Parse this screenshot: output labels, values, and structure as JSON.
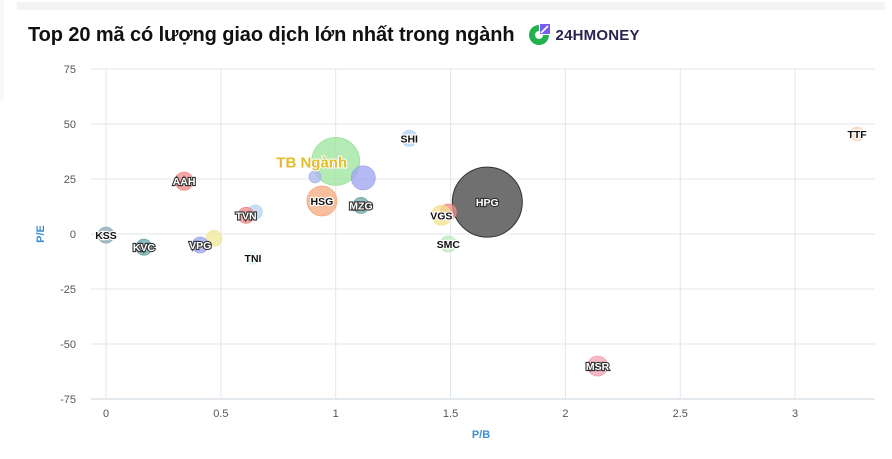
{
  "header": {
    "title": "Top 20 mã có lượng giao dịch lớn nhất trong ngành",
    "logo_text": "24HMONEY",
    "logo_icon": "24hmoney-logo-icon"
  },
  "colors": {
    "title": "#111111",
    "axis_label": "#3b8fd4",
    "grid": "#e3e6ea",
    "tb_label": "#e2bd2b",
    "logo_green": "#22b14c",
    "logo_purple": "#7a5cf0"
  },
  "chart_data": {
    "type": "scatter",
    "title": "Top 20 mã có lượng giao dịch lớn nhất trong ngành",
    "xlabel": "P/B",
    "ylabel": "P/E",
    "xlim": [
      -0.06,
      3.35
    ],
    "ylim": [
      -75,
      75
    ],
    "x_ticks": [
      0,
      0.5,
      1,
      1.5,
      2,
      2.5,
      3
    ],
    "x_tick_labels": [
      "0",
      "0.5",
      "1",
      "1.5",
      "2",
      "2.5",
      "3"
    ],
    "y_ticks": [
      75,
      50,
      25,
      0,
      -25,
      -50,
      -75
    ],
    "y_tick_labels": [
      "75",
      "50",
      "25",
      "0",
      "-25",
      "-50",
      "-75"
    ],
    "grid": true,
    "legend": "none",
    "points": [
      {
        "label": "TB Ngành",
        "x": 1.0,
        "y": 33,
        "r": 24,
        "color": "#9be39b",
        "special": true
      },
      {
        "label": "",
        "x": 0.91,
        "y": 26,
        "r": 6,
        "color": "#aab4f0"
      },
      {
        "label": "HPG",
        "x": 1.66,
        "y": 14.5,
        "r": 35,
        "color": "#707070",
        "outline": true
      },
      {
        "label": "HSG",
        "x": 0.94,
        "y": 15,
        "r": 15,
        "color": "#f4a97c"
      },
      {
        "label": "",
        "x": 1.12,
        "y": 25.5,
        "r": 12,
        "color": "#9ea3f0"
      },
      {
        "label": "MZG",
        "x": 1.11,
        "y": 13,
        "r": 8,
        "color": "#6aa5a5",
        "outline": true
      },
      {
        "label": "SHI",
        "x": 1.32,
        "y": 43.5,
        "r": 8,
        "color": "#b5d3f0"
      },
      {
        "label": "",
        "x": 1.49,
        "y": 10,
        "r": 8,
        "color": "#f08a8a"
      },
      {
        "label": "VGS",
        "x": 1.46,
        "y": 8.5,
        "r": 10,
        "color": "#f5e08a"
      },
      {
        "label": "SMC",
        "x": 1.49,
        "y": -4.5,
        "r": 8,
        "color": "#b8ecb8"
      },
      {
        "label": "AAH",
        "x": 0.34,
        "y": 24,
        "r": 9,
        "color": "#f28a8a",
        "outline": true
      },
      {
        "label": "",
        "x": 0.65,
        "y": 10,
        "r": 7,
        "color": "#b5d3f0"
      },
      {
        "label": "TVN",
        "x": 0.61,
        "y": 8.5,
        "r": 8,
        "color": "#f08a8a",
        "outline": true
      },
      {
        "label": "TNI",
        "x": 0.64,
        "y": -11,
        "r": 6,
        "color": "#d8f2f2"
      },
      {
        "label": "",
        "x": 0.47,
        "y": -2,
        "r": 8,
        "color": "#f2e89a"
      },
      {
        "label": "VPG",
        "x": 0.41,
        "y": -5,
        "r": 8,
        "color": "#9ea3f0",
        "outline": true
      },
      {
        "label": "KVC",
        "x": 0.165,
        "y": -6,
        "r": 8,
        "color": "#6aa5a5",
        "outline": true
      },
      {
        "label": "KSS",
        "x": 0.0,
        "y": -0.5,
        "r": 8,
        "color": "#8aa8b3"
      },
      {
        "label": "MSR",
        "x": 2.14,
        "y": -60,
        "r": 10,
        "color": "#f2a0b0",
        "outline": true
      },
      {
        "label": "TTF",
        "x": 3.27,
        "y": 45.5,
        "r": 7,
        "color": "#f8d8c0"
      }
    ]
  }
}
